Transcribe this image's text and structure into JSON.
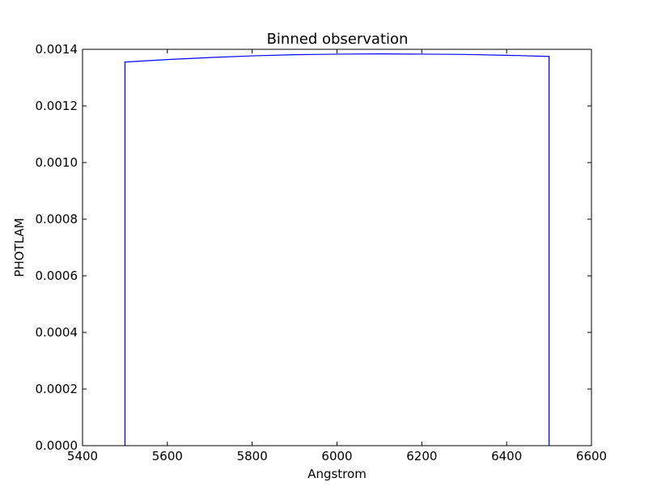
{
  "chart_data": {
    "type": "line",
    "title": "Binned observation",
    "xlabel": "Angstrom",
    "ylabel": "PHOTLAM",
    "xlim": [
      5400,
      6600
    ],
    "ylim": [
      0,
      0.0014
    ],
    "xticks": [
      5400,
      5600,
      5800,
      6000,
      6200,
      6400,
      6600
    ],
    "xtick_labels": [
      "5400",
      "5600",
      "5800",
      "6000",
      "6200",
      "6400",
      "6600"
    ],
    "yticks": [
      0,
      0.0002,
      0.0004,
      0.0006,
      0.0008,
      0.001,
      0.0012,
      0.0014
    ],
    "ytick_labels": [
      "0.0000",
      "0.0002",
      "0.0004",
      "0.0006",
      "0.0008",
      "0.0010",
      "0.0012",
      "0.0014"
    ],
    "grid": false,
    "series": [
      {
        "color": "#0000ff",
        "x": [
          5500,
          5500,
          5600,
          5700,
          5800,
          5900,
          6000,
          6100,
          6200,
          6300,
          6400,
          6500,
          6500
        ],
        "y": [
          0,
          0.001355,
          0.001364,
          0.001371,
          0.001377,
          0.001381,
          0.001383,
          0.001384,
          0.001383,
          0.001382,
          0.001379,
          0.001375,
          0
        ]
      }
    ]
  }
}
